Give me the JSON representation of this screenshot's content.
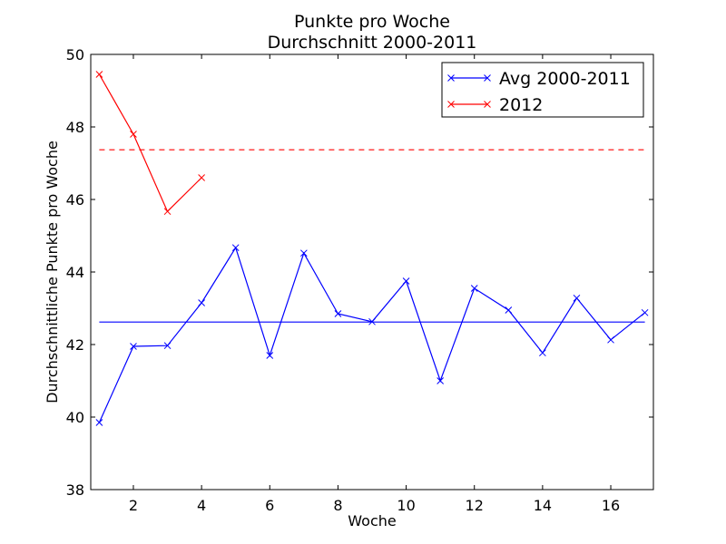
{
  "chart_data": {
    "type": "line",
    "title": "Punkte pro Woche",
    "subtitle": "Durchschnitt 2000-2011",
    "xlabel": "Woche",
    "ylabel": "Durchschnittliche Punkte pro Woche",
    "xlim": [
      0.75,
      17.25
    ],
    "ylim": [
      38,
      50
    ],
    "xticks": [
      2,
      4,
      6,
      8,
      10,
      12,
      14,
      16
    ],
    "yticks": [
      38,
      40,
      42,
      44,
      46,
      48,
      50
    ],
    "grid": false,
    "legend_position": "top-right",
    "series": [
      {
        "name": "Avg 2000-2011",
        "color": "#0000ff",
        "marker": "x",
        "x": [
          1,
          2,
          3,
          4,
          5,
          6,
          7,
          8,
          9,
          10,
          11,
          12,
          13,
          14,
          15,
          16,
          17
        ],
        "values": [
          39.85,
          41.95,
          41.97,
          43.15,
          44.67,
          41.7,
          44.52,
          42.85,
          42.63,
          43.75,
          41.0,
          43.55,
          42.95,
          41.77,
          43.28,
          42.13,
          42.88
        ]
      },
      {
        "name": "2012",
        "color": "#ff0000",
        "marker": "x",
        "x": [
          1,
          2,
          3,
          4
        ],
        "values": [
          49.45,
          47.8,
          45.67,
          46.6
        ]
      }
    ],
    "reference_lines": [
      {
        "y": 42.62,
        "color": "#0000ff",
        "style": "solid"
      },
      {
        "y": 47.37,
        "color": "#ff0000",
        "style": "dashed"
      }
    ]
  }
}
